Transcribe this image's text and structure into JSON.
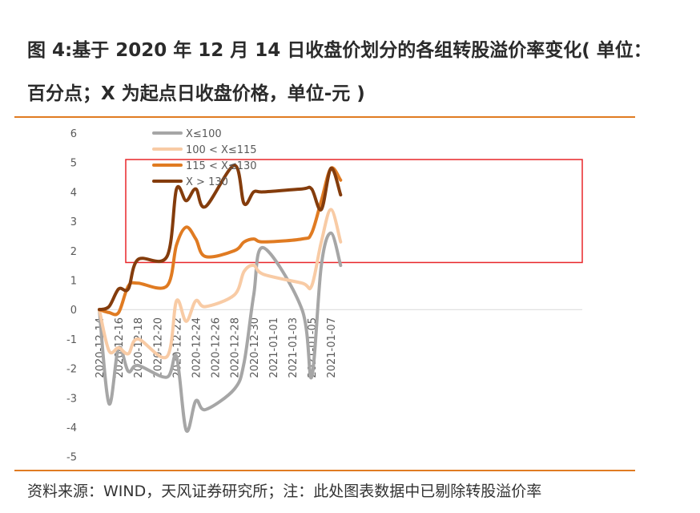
{
  "title": "图 4:基于 2020 年 12 月 14 日收盘价划分的各组转股溢价率变化( 单位：百分点；X 为起点日收盘价格，单位-元 )",
  "source": "资料来源：WIND，天风证券研究所；注：此处图表数据中已剔除转股溢价率",
  "chart_data": {
    "type": "line",
    "title": "",
    "xlabel": "",
    "ylabel": "",
    "ylim": [
      -5,
      6
    ],
    "yticks": [
      6,
      5,
      4,
      3,
      2,
      1,
      0,
      -1,
      -2,
      -3,
      -4,
      -5
    ],
    "x_tick_labels": [
      "2020-12-14",
      "2020-12-16",
      "2020-12-18",
      "2020-12-20",
      "2020-12-22",
      "2020-12-24",
      "2020-12-26",
      "2020-12-28",
      "2020-12-30",
      "2021-01-01",
      "2021-01-03",
      "2021-01-05",
      "2021-01-07"
    ],
    "grid": false,
    "legend_position": "top-left",
    "highlight_box": {
      "ymin": 1.6,
      "ymax": 5.1,
      "color": "#e8262a"
    },
    "x": [
      "2020-12-14",
      "2020-12-15",
      "2020-12-16",
      "2020-12-17",
      "2020-12-18",
      "2020-12-21",
      "2020-12-22",
      "2020-12-23",
      "2020-12-24",
      "2020-12-25",
      "2020-12-28",
      "2020-12-29",
      "2020-12-30",
      "2020-12-31",
      "2021-01-04",
      "2021-01-05",
      "2021-01-06",
      "2021-01-07",
      "2021-01-08"
    ],
    "series": [
      {
        "name": "X≤100",
        "color": "#a6a6a6",
        "values": [
          0,
          -3.2,
          -1.3,
          -2.1,
          -1.9,
          -2.3,
          -1.6,
          -4.1,
          -3.1,
          -3.4,
          -2.7,
          -1.8,
          0.5,
          2.1,
          0.0,
          -2.3,
          1.5,
          2.6,
          1.5
        ]
      },
      {
        "name": "100 < X≤115",
        "color": "#f8cba5",
        "values": [
          0,
          -1.4,
          -1.3,
          -1.5,
          -1.0,
          -1.6,
          0.3,
          -0.4,
          0.3,
          0.1,
          0.5,
          1.3,
          1.5,
          1.2,
          0.9,
          0.8,
          2.3,
          3.4,
          2.3
        ]
      },
      {
        "name": "115 < X≤130",
        "color": "#e07b22",
        "values": [
          0,
          -0.1,
          -0.1,
          0.8,
          0.9,
          0.8,
          2.2,
          2.8,
          2.4,
          1.8,
          2.0,
          2.3,
          2.4,
          2.3,
          2.4,
          2.6,
          3.7,
          4.8,
          4.4
        ]
      },
      {
        "name": "X > 130",
        "color": "#843c0c",
        "values": [
          0,
          0.1,
          0.7,
          0.7,
          1.7,
          1.8,
          4.1,
          3.7,
          4.1,
          3.5,
          4.9,
          3.6,
          4.0,
          4.0,
          4.1,
          4.1,
          3.4,
          4.8,
          3.9
        ]
      }
    ]
  }
}
